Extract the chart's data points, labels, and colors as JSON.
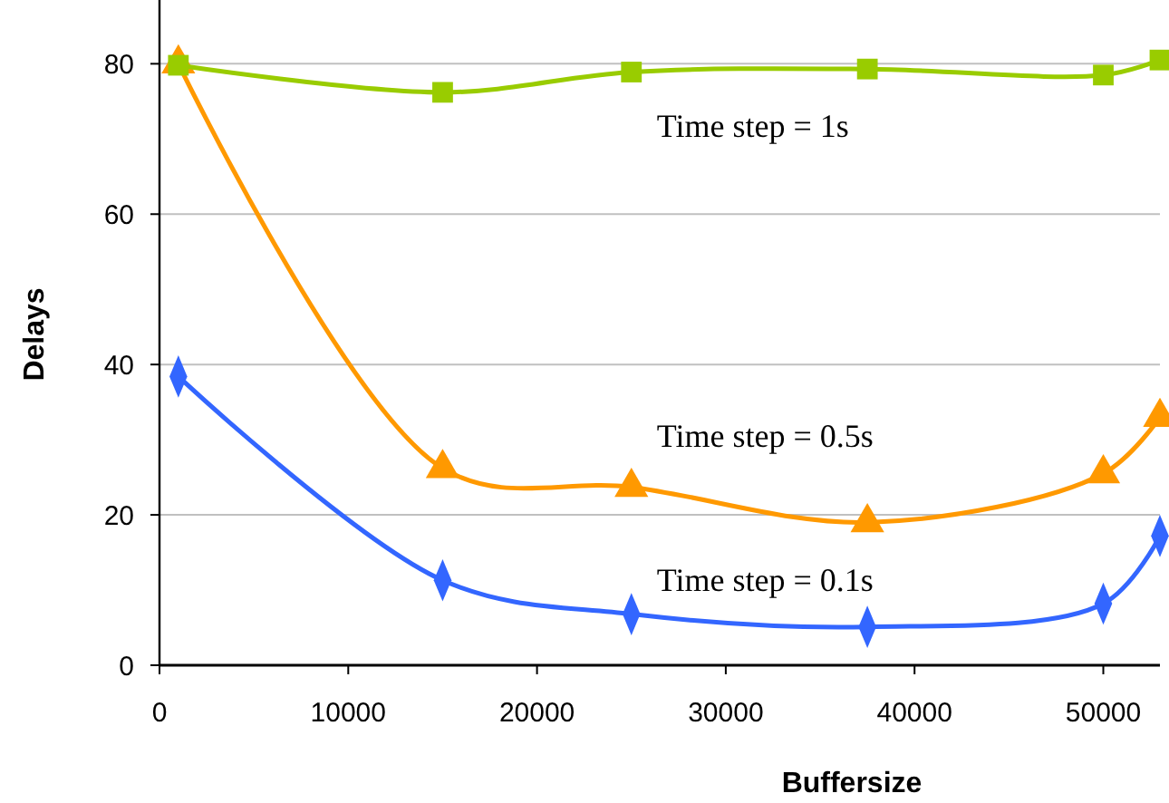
{
  "chart_data": {
    "type": "line",
    "xlabel": "Buffersize",
    "ylabel": "Delays",
    "xlim": [
      0,
      53000
    ],
    "ylim": [
      0,
      88
    ],
    "xticks": [
      0,
      10000,
      20000,
      30000,
      40000,
      50000
    ],
    "yticks": [
      0,
      20,
      40,
      60,
      80
    ],
    "grid": "y",
    "series": [
      {
        "name": "Time step = 1s",
        "color": "#99cc00",
        "marker": "square",
        "x": [
          1000,
          15000,
          25000,
          37500,
          50000,
          53000
        ],
        "values": [
          79.8,
          76.2,
          78.9,
          79.3,
          78.5,
          80.5
        ]
      },
      {
        "name": "Time step = 0.5s",
        "color": "#ff9900",
        "marker": "triangle",
        "x": [
          1000,
          15000,
          25000,
          37500,
          50000,
          53000
        ],
        "values": [
          80,
          26.2,
          23.7,
          19,
          25.5,
          33
        ]
      },
      {
        "name": "Time step = 0.1s",
        "color": "#3366ff",
        "marker": "diamond",
        "x": [
          1000,
          15000,
          25000,
          37500,
          50000,
          53000
        ],
        "values": [
          38.4,
          11.3,
          6.8,
          5.1,
          8.2,
          17.2
        ]
      }
    ]
  }
}
